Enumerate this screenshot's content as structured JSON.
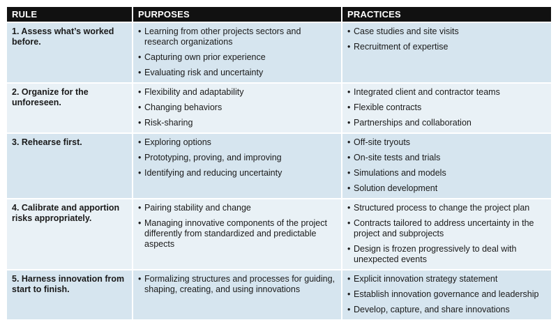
{
  "headers": [
    "RULE",
    "PURPOSES",
    "PRACTICES"
  ],
  "rows": [
    {
      "rule": "1. Assess what’s worked before.",
      "purposes": [
        "Learning from other projects sectors and research organizations",
        "Capturing own prior experience",
        "Evaluating risk and uncertainty"
      ],
      "practices": [
        "Case studies and site visits",
        "Recruitment of expertise"
      ]
    },
    {
      "rule": "2. Organize for the unforeseen.",
      "purposes": [
        "Flexibility and adaptability",
        "Changing behaviors",
        "Risk-sharing"
      ],
      "practices": [
        "Integrated client and contractor teams",
        "Flexible contracts",
        "Partnerships and collaboration"
      ]
    },
    {
      "rule": "3. Rehearse first.",
      "purposes": [
        "Exploring options",
        "Prototyping, proving, and improving",
        "Identifying and reducing uncertainty"
      ],
      "practices": [
        "Off-site tryouts",
        "On-site tests and trials",
        "Simulations and models",
        "Solution development"
      ]
    },
    {
      "rule": "4. Calibrate and apportion risks appropriately.",
      "purposes": [
        "Pairing stability and change",
        "Managing innovative components of the project differently from standardized and predictable aspects"
      ],
      "practices": [
        "Structured process to change the project plan",
        "Contracts tailored to address uncertainty in the project and subprojects",
        "Design is frozen progressively to deal with unexpected events"
      ]
    },
    {
      "rule": "5. Harness innovation from start to finish.",
      "purposes": [
        "Formalizing structures and processes for guiding, shaping, creating, and using innovations"
      ],
      "practices": [
        "Explicit innovation strategy statement",
        "Establish innovation governance and leadership",
        "Develop, capture, and share innovations"
      ]
    }
  ]
}
